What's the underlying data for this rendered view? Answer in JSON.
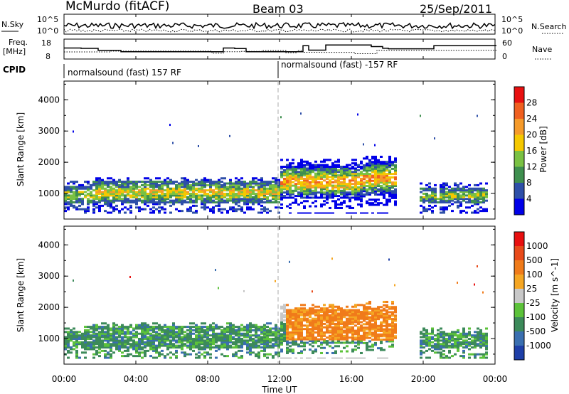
{
  "header": {
    "title": "McMurdo (fitACF)",
    "beam": "Beam 03",
    "date": "25/Sep/2011"
  },
  "noise_panel": {
    "left_label": "N.Sky",
    "right_label": "N.Search",
    "left_ticks": [
      "10^5",
      "10^0"
    ],
    "right_ticks": [
      "10^5",
      "10^0"
    ]
  },
  "freq_panel": {
    "left_label_1": "Freq.",
    "left_label_2": "[MHz]",
    "right_label": "Nave",
    "left_ticks": [
      "18",
      "8"
    ],
    "right_ticks": [
      "60",
      "0"
    ]
  },
  "cpid": {
    "label": "CPID",
    "segments": [
      {
        "text": "normalsound (fast) 157 RF",
        "start_hour": 0
      },
      {
        "text": "normalsound (fast) -157 RF",
        "start_hour": 12
      }
    ]
  },
  "chart_data": [
    {
      "type": "heatmap",
      "parameter": "Power",
      "ylabel": "Slant Range [km]",
      "ylim": [
        180,
        4600
      ],
      "y_ticks": [
        "4000",
        "3000",
        "2000",
        "1000"
      ],
      "colorbar_label": "Power [dB]",
      "colorbar_ticks": [
        "28",
        "24",
        "20",
        "16",
        "12",
        "8",
        "4"
      ],
      "colorbar_colors": [
        "#0000e8",
        "#2e4fa8",
        "#3f8f4f",
        "#7ac143",
        "#f5c800",
        "#f59a2a",
        "#f06020",
        "#e81010"
      ]
    },
    {
      "type": "heatmap",
      "parameter": "Velocity",
      "ylabel": "Slant Range [km]",
      "ylim": [
        180,
        4600
      ],
      "y_ticks": [
        "4000",
        "3000",
        "2000",
        "1000"
      ],
      "colorbar_label": "Velocity [m s^-1]",
      "colorbar_ticks": [
        "1000",
        "500",
        "100",
        "25",
        "-25",
        "-100",
        "-500",
        "-1000"
      ],
      "colorbar_colors": [
        "#1e3fa8",
        "#3a6fb0",
        "#3c8a5a",
        "#5cc23a",
        "#c8c8c8",
        "#f5a623",
        "#f07b1a",
        "#e84a1a",
        "#e81010"
      ]
    }
  ],
  "x_axis": {
    "label": "Time UT",
    "ticks": [
      "00:00",
      "04:00",
      "08:00",
      "12:00",
      "16:00",
      "20:00",
      "00:00"
    ]
  }
}
